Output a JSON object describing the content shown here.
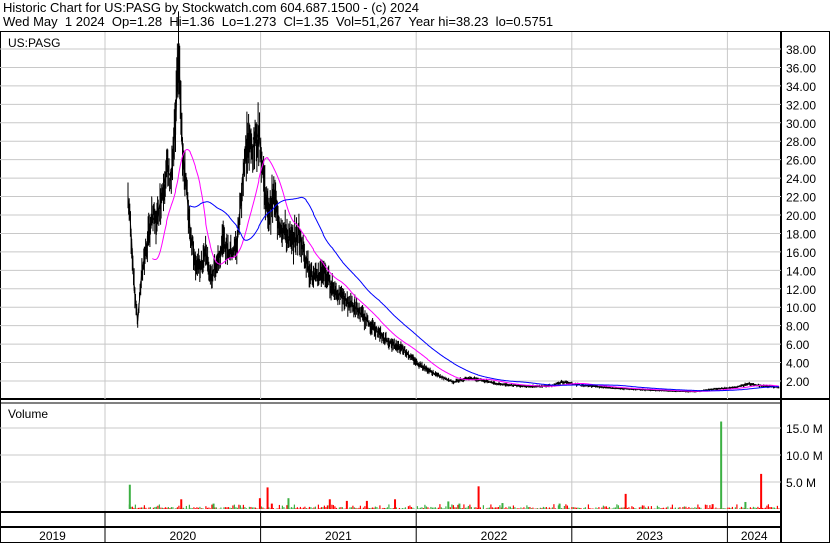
{
  "header": {
    "title": "Historic Chart for US:PASG by Stockwatch.com 604.687.1500 - (c) 2024",
    "quote": "Wed May  1 2024  Op=1.28  Hi=1.36  Lo=1.273  Cl=1.35  Vol=51,267  Year hi=38.23  lo=0.5751"
  },
  "chart_data": [
    {
      "type": "line",
      "title": "US:PASG",
      "ylim": [
        0,
        39
      ],
      "yticks": [
        "38.00",
        "36.00",
        "34.00",
        "32.00",
        "30.00",
        "28.00",
        "26.00",
        "24.00",
        "22.00",
        "20.00",
        "18.00",
        "16.00",
        "14.00",
        "12.00",
        "10.00",
        "8.00",
        "6.00",
        "4.00",
        "2.00"
      ],
      "grid": true,
      "colors": {
        "price": "#000000",
        "ma_short": "#ff00ff",
        "ma_long": "#0000ff",
        "down_close": "#ff0000"
      },
      "series": [
        {
          "x": [
            "2020-02-24",
            "2020-03-01",
            "2020-03-10",
            "2020-03-18",
            "2020-03-28",
            "2020-04-10",
            "2020-04-20",
            "2020-05-01",
            "2020-05-12",
            "2020-05-25",
            "2020-06-05",
            "2020-06-15",
            "2020-06-22",
            "2020-06-30",
            "2020-07-08",
            "2020-07-20",
            "2020-08-01",
            "2020-08-12",
            "2020-08-25",
            "2020-09-05",
            "2020-09-20",
            "2020-10-05",
            "2020-10-20",
            "2020-11-06",
            "2020-11-20",
            "2020-12-01",
            "2020-12-12",
            "2020-12-28",
            "2021-01-08",
            "2021-01-18",
            "2021-02-01",
            "2021-02-15",
            "2021-03-01",
            "2021-03-15",
            "2021-04-01",
            "2021-04-18",
            "2021-05-05",
            "2021-05-28",
            "2021-06-20",
            "2021-07-12",
            "2021-08-10",
            "2021-09-08",
            "2021-10-08",
            "2021-11-05",
            "2021-12-01",
            "2022-01-02",
            "2022-01-28",
            "2022-02-25",
            "2022-03-30",
            "2022-04-28",
            "2022-05-25",
            "2022-07-10",
            "2022-08-25",
            "2022-10-10",
            "2022-11-15",
            "2022-12-08",
            "2023-01-15",
            "2023-03-01",
            "2023-04-15",
            "2023-06-01",
            "2023-07-15",
            "2023-09-01",
            "2023-10-20",
            "2023-11-25",
            "2024-01-20",
            "2024-02-20",
            "2024-03-15",
            "2024-04-10",
            "2024-05-01"
          ],
          "values": [
            22,
            19,
            12,
            8.5,
            14,
            17,
            20,
            19,
            22,
            25,
            24,
            30,
            38,
            28,
            24,
            18,
            15,
            14,
            16,
            13,
            15,
            17,
            16,
            16.5,
            24,
            28,
            27,
            29,
            24,
            20,
            22,
            19,
            18,
            17,
            18,
            15,
            13,
            14,
            12,
            11,
            10,
            8.5,
            7,
            6,
            5.5,
            4,
            3.2,
            2.5,
            1.9,
            2.3,
            2.2,
            1.7,
            1.5,
            1.4,
            1.5,
            1.9,
            1.6,
            1.4,
            1.2,
            1.1,
            1.0,
            0.9,
            0.85,
            1.1,
            1.3,
            1.7,
            1.5,
            1.4,
            1.35
          ]
        }
      ]
    },
    {
      "type": "bar",
      "title": "Volume",
      "yticks": [
        "15.0 M",
        "10.0 M",
        "5.0 M"
      ],
      "ylim": [
        0,
        19
      ],
      "colors": {
        "up": "#3cb043",
        "down": "#ff0000"
      },
      "bars": [
        {
          "x": "2020-02-26",
          "value": 4.5,
          "dir": "up"
        },
        {
          "x": "2020-06-26",
          "value": 1.8,
          "dir": "down"
        },
        {
          "x": "2020-09-10",
          "value": 1.0,
          "dir": "up"
        },
        {
          "x": "2020-12-28",
          "value": 2.0,
          "dir": "down"
        },
        {
          "x": "2021-01-15",
          "value": 4.0,
          "dir": "down"
        },
        {
          "x": "2021-01-25",
          "value": 1.0,
          "dir": "down"
        },
        {
          "x": "2021-03-05",
          "value": 2.0,
          "dir": "up"
        },
        {
          "x": "2021-06-10",
          "value": 1.8,
          "dir": "down"
        },
        {
          "x": "2021-07-20",
          "value": 1.5,
          "dir": "down"
        },
        {
          "x": "2021-09-05",
          "value": 1.5,
          "dir": "down"
        },
        {
          "x": "2021-11-10",
          "value": 1.8,
          "dir": "down"
        },
        {
          "x": "2022-03-15",
          "value": 1.4,
          "dir": "up"
        },
        {
          "x": "2022-04-10",
          "value": 1.0,
          "dir": "up"
        },
        {
          "x": "2022-05-25",
          "value": 4.2,
          "dir": "down"
        },
        {
          "x": "2022-07-20",
          "value": 1.1,
          "dir": "up"
        },
        {
          "x": "2022-12-01",
          "value": 1.0,
          "dir": "up"
        },
        {
          "x": "2023-05-05",
          "value": 2.8,
          "dir": "down"
        },
        {
          "x": "2023-11-25",
          "value": 0.9,
          "dir": "red"
        },
        {
          "x": "2023-12-15",
          "value": 16.2,
          "dir": "up"
        },
        {
          "x": "2024-02-10",
          "value": 1.3,
          "dir": "up"
        },
        {
          "x": "2024-03-18",
          "value": 6.5,
          "dir": "down"
        }
      ]
    }
  ],
  "xaxis": {
    "years": [
      "2019",
      "2020",
      "2021",
      "2022",
      "2023",
      "2024"
    ]
  }
}
